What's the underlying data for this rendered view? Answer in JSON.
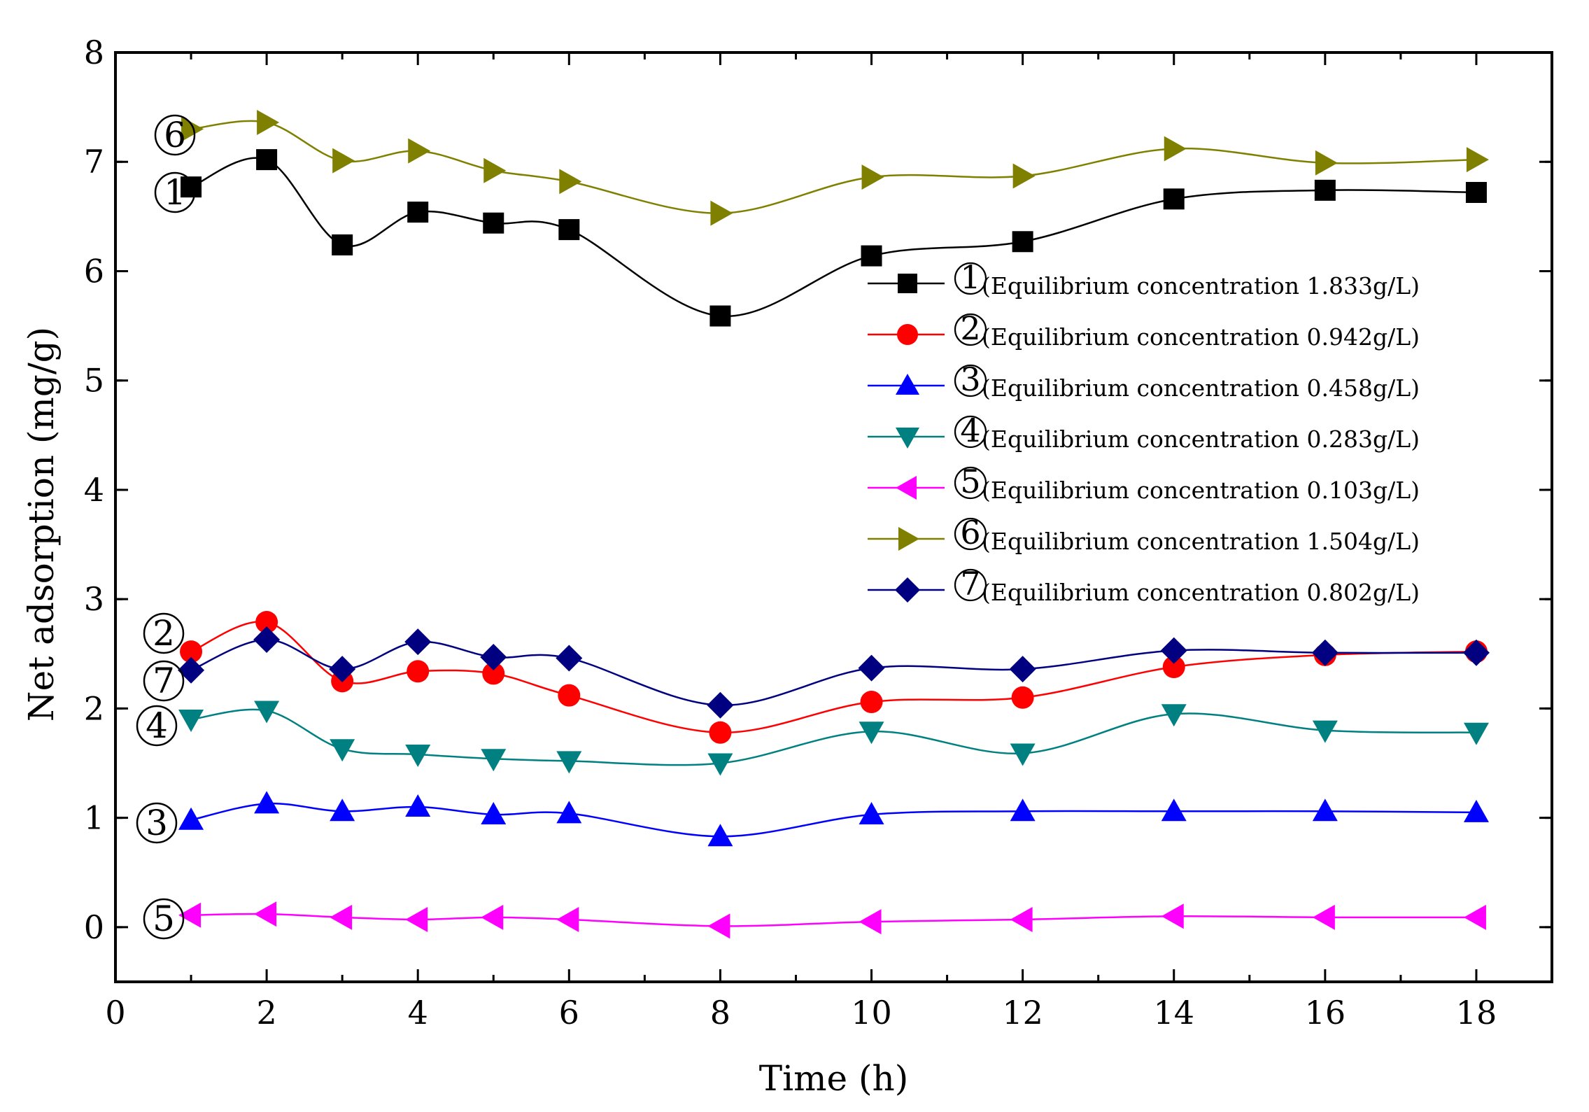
{
  "chart_data": {
    "type": "line",
    "title": "",
    "xlabel": "Time (h)",
    "ylabel": "Net adsorption  (mg/g)",
    "xlim": [
      0,
      19
    ],
    "ylim": [
      -0.5,
      8
    ],
    "xticks": [
      0,
      2,
      4,
      6,
      8,
      10,
      12,
      14,
      16,
      18
    ],
    "yticks": [
      0,
      1,
      2,
      3,
      4,
      5,
      6,
      7,
      8
    ],
    "x": [
      1,
      2,
      3,
      4,
      5,
      6,
      8,
      10,
      12,
      14,
      16,
      18
    ],
    "legend_position": "center-right",
    "series": [
      {
        "id": "1",
        "tag": "1",
        "name": "(Equilibrium concentration 1.833g/L)",
        "color": "#000000",
        "marker": "square",
        "values": [
          6.77,
          7.02,
          6.24,
          6.54,
          6.44,
          6.38,
          5.59,
          6.14,
          6.27,
          6.66,
          6.74,
          6.72
        ]
      },
      {
        "id": "2",
        "tag": "2",
        "name": "(Equilibrium concentration 0.942g/L)",
        "color": "#ff0000",
        "marker": "circle",
        "values": [
          2.52,
          2.79,
          2.25,
          2.34,
          2.32,
          2.12,
          1.78,
          2.06,
          2.1,
          2.38,
          2.49,
          2.52
        ]
      },
      {
        "id": "3",
        "tag": "3",
        "name": "(Equilibrium concentration 0.458g/L)",
        "color": "#0000ff",
        "marker": "triangle-up",
        "values": [
          0.98,
          1.13,
          1.06,
          1.1,
          1.03,
          1.04,
          0.83,
          1.03,
          1.06,
          1.06,
          1.06,
          1.05
        ]
      },
      {
        "id": "4",
        "tag": "4",
        "name": "(Equilibrium concentration 0.283g/L)",
        "color": "#008080",
        "marker": "triangle-down",
        "values": [
          1.9,
          1.98,
          1.63,
          1.58,
          1.54,
          1.52,
          1.5,
          1.79,
          1.59,
          1.95,
          1.8,
          1.78
        ]
      },
      {
        "id": "5",
        "tag": "5",
        "name": "(Equilibrium concentration 0.103g/L)",
        "color": "#ff00ff",
        "marker": "triangle-left",
        "values": [
          0.11,
          0.12,
          0.09,
          0.07,
          0.09,
          0.07,
          0.01,
          0.05,
          0.07,
          0.1,
          0.09,
          0.09
        ]
      },
      {
        "id": "6",
        "tag": "6",
        "name": "(Equilibrium concentration 1.504g/L)",
        "color": "#808000",
        "marker": "triangle-right",
        "values": [
          7.3,
          7.36,
          7.01,
          7.1,
          6.92,
          6.82,
          6.53,
          6.86,
          6.87,
          7.12,
          6.99,
          7.02
        ]
      },
      {
        "id": "7",
        "tag": "7",
        "name": "(Equilibrium concentration 0.802g/L)",
        "color": "#000080",
        "marker": "diamond",
        "values": [
          2.35,
          2.63,
          2.36,
          2.61,
          2.47,
          2.46,
          2.03,
          2.37,
          2.36,
          2.53,
          2.51,
          2.51
        ]
      }
    ],
    "series_tags": [
      "6",
      "1",
      "2",
      "7",
      "4",
      "3",
      "5"
    ]
  }
}
